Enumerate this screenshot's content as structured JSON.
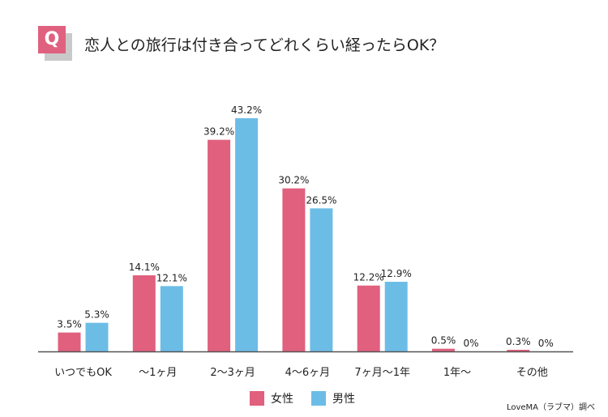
{
  "question": {
    "badge_letter": "Q",
    "text": "恋人との旅行は付き合ってどれくらい経ったらOK？"
  },
  "colors": {
    "female": "#e0607e",
    "male": "#6cbde6",
    "badge": "#e0617f",
    "axis": "#555555"
  },
  "legend": {
    "female_label": "女性",
    "male_label": "男性"
  },
  "credit": "LoveMA（ラブマ）調べ",
  "chart_data": {
    "type": "bar",
    "title": "",
    "xlabel": "",
    "ylabel": "",
    "ylim": [
      0,
      45
    ],
    "grid": false,
    "legend_position": "bottom-center",
    "categories": [
      "いつでもOK",
      "〜1ヶ月",
      "2〜3ヶ月",
      "4〜6ヶ月",
      "7ヶ月〜1年",
      "1年〜",
      "その他"
    ],
    "series": [
      {
        "name": "女性",
        "values": [
          3.5,
          14.1,
          39.2,
          30.2,
          12.2,
          0.5,
          0.3
        ],
        "labels": [
          "3.5%",
          "14.1%",
          "39.2%",
          "30.2%",
          "12.2%",
          "0.5%",
          "0.3%"
        ]
      },
      {
        "name": "男性",
        "values": [
          5.3,
          12.1,
          43.2,
          26.5,
          12.9,
          0,
          0
        ],
        "labels": [
          "5.3%",
          "12.1%",
          "43.2%",
          "26.5%",
          "12.9%",
          "0%",
          "0%"
        ]
      }
    ]
  }
}
